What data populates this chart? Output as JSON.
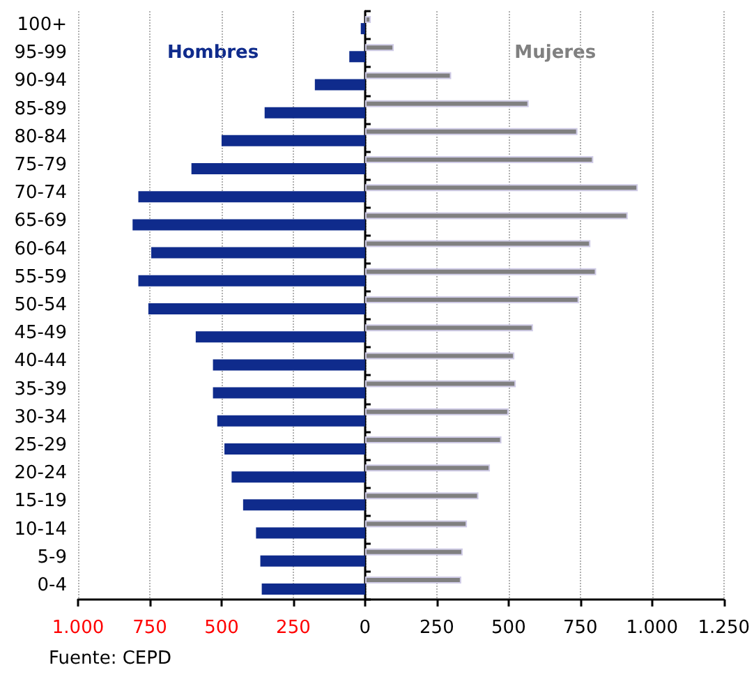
{
  "chart_data": {
    "type": "bar",
    "orientation": "horizontal",
    "categories": [
      "100+",
      "95-99",
      "90-94",
      "85-89",
      "80-84",
      "75-79",
      "70-74",
      "65-69",
      "60-64",
      "55-59",
      "50-54",
      "45-49",
      "40-44",
      "35-39",
      "30-34",
      "25-29",
      "20-24",
      "15-19",
      "10-14",
      "5-9",
      "0-4"
    ],
    "series": [
      {
        "name": "Hombres",
        "color": "#0f2b8c",
        "values": [
          -15,
          -55,
          -175,
          -350,
          -500,
          -605,
          -790,
          -810,
          -745,
          -790,
          -755,
          -590,
          -530,
          -530,
          -515,
          -490,
          -465,
          -425,
          -380,
          -365,
          -360
        ]
      },
      {
        "name": "Mujeres",
        "color": "#808080",
        "values": [
          20,
          100,
          300,
          570,
          740,
          795,
          950,
          915,
          785,
          805,
          745,
          585,
          520,
          525,
          500,
          475,
          435,
          395,
          355,
          340,
          335
        ]
      }
    ],
    "xlim": [
      -1000,
      1250
    ],
    "xticks": [
      {
        "value": -1000,
        "label": "1.000"
      },
      {
        "value": -750,
        "label": "750"
      },
      {
        "value": -500,
        "label": "500"
      },
      {
        "value": -250,
        "label": "250"
      },
      0,
      250,
      500,
      750,
      {
        "value": 1000,
        "label": "1.000"
      },
      {
        "value": 1250,
        "label": "1.250"
      }
    ],
    "grid": "x",
    "annotations": [
      "Fuente: CEPD"
    ]
  }
}
